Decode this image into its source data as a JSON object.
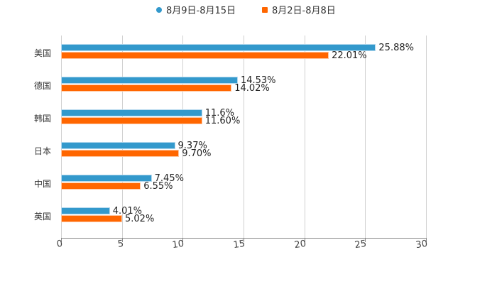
{
  "legend": [
    {
      "label": "8月9日-8月15日",
      "color": "#3399cc",
      "shape": "circle"
    },
    {
      "label": "8月2日-8月8日",
      "color": "#ff6600",
      "shape": "square"
    }
  ],
  "axis": {
    "ticks": [
      "0",
      "5",
      "10",
      "15",
      "20",
      "25",
      "30"
    ]
  },
  "categories": [
    {
      "label": "美国",
      "s1": "25.88%",
      "s2": "22.01%"
    },
    {
      "label": "德国",
      "s1": "14.53%",
      "s2": "14.02%"
    },
    {
      "label": "韩国",
      "s1": "11.6%",
      "s2": "11.60%"
    },
    {
      "label": "日本",
      "s1": "9.37%",
      "s2": "9.70%"
    },
    {
      "label": "中国",
      "s1": "7.45%",
      "s2": "6.55%"
    },
    {
      "label": "英国",
      "s1": "4.01%",
      "s2": "5.02%"
    }
  ],
  "chart_data": {
    "type": "bar",
    "orientation": "horizontal",
    "title": "",
    "xlabel": "",
    "ylabel": "",
    "categories": [
      "美国",
      "德国",
      "韩国",
      "日本",
      "中国",
      "英国"
    ],
    "series": [
      {
        "name": "8月9日-8月15日",
        "color": "#3399cc",
        "values": [
          25.88,
          14.53,
          11.6,
          9.37,
          7.45,
          4.01
        ]
      },
      {
        "name": "8月2日-8月8日",
        "color": "#ff6600",
        "values": [
          22.01,
          14.02,
          11.6,
          9.7,
          6.55,
          5.02
        ]
      }
    ],
    "xlim": [
      0,
      30
    ],
    "xticks": [
      0,
      5,
      10,
      15,
      20,
      25,
      30
    ],
    "grid": true,
    "legend_position": "top",
    "data_labels": true
  }
}
